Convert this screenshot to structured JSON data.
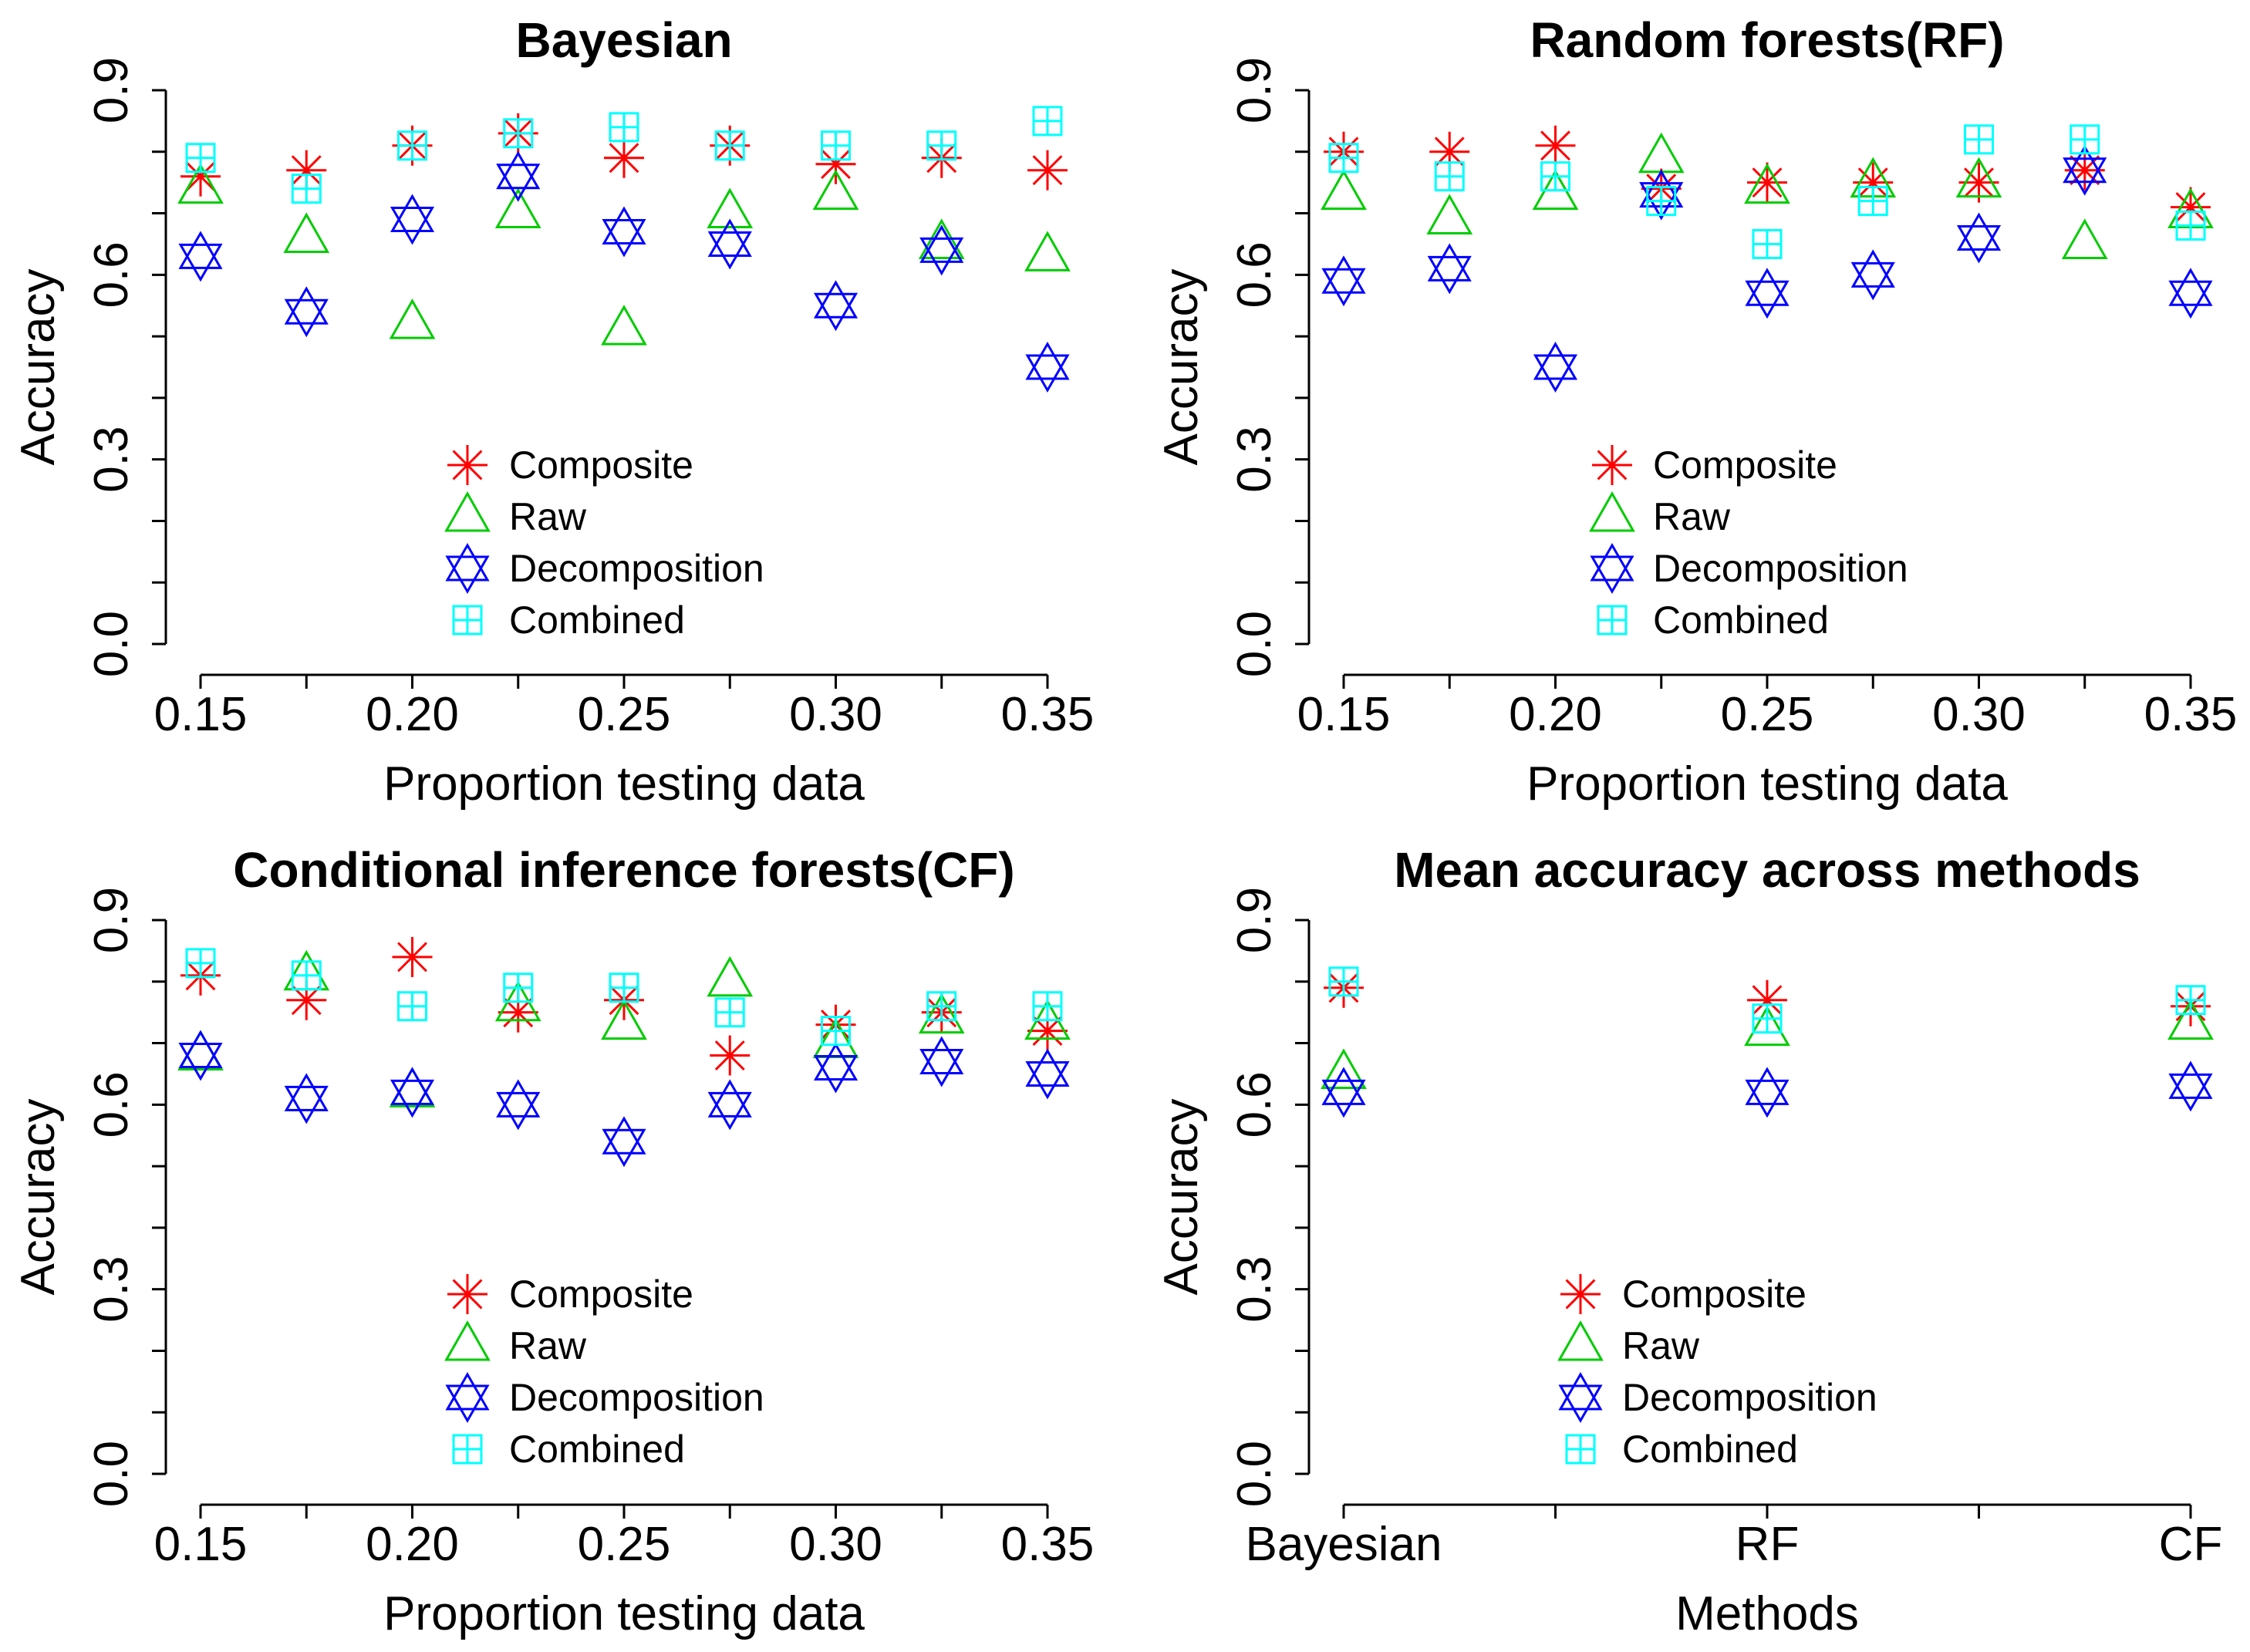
{
  "chart_data": [
    {
      "type": "scatter",
      "title": "Bayesian",
      "xlabel": "Proportion testing data",
      "ylabel": "Accuracy",
      "xlim": [
        0.15,
        0.35
      ],
      "ylim": [
        0.0,
        0.9
      ],
      "x_ticks": [
        "0.15",
        "0.20",
        "0.25",
        "0.30",
        "0.35"
      ],
      "y_ticks": [
        "0.0",
        "0.3",
        "0.6",
        "0.9"
      ],
      "x": [
        0.15,
        0.175,
        0.2,
        0.225,
        0.25,
        0.275,
        0.3,
        0.325,
        0.35
      ],
      "legend_position": "center",
      "series": [
        {
          "name": "Composite",
          "marker": "asterisk",
          "color": "#ff0000",
          "values": [
            0.76,
            0.77,
            0.81,
            0.83,
            0.79,
            0.81,
            0.78,
            0.79,
            0.77
          ]
        },
        {
          "name": "Raw",
          "marker": "triangle",
          "color": "#00cc00",
          "values": [
            0.74,
            0.66,
            0.52,
            0.7,
            0.51,
            0.7,
            0.73,
            0.65,
            0.63
          ]
        },
        {
          "name": "Decomposition",
          "marker": "star6",
          "color": "#0000ff",
          "values": [
            0.63,
            0.54,
            0.69,
            0.76,
            0.67,
            0.65,
            0.55,
            0.64,
            0.45
          ]
        },
        {
          "name": "Combined",
          "marker": "boxplus",
          "color": "#00ffff",
          "values": [
            0.79,
            0.74,
            0.81,
            0.83,
            0.84,
            0.81,
            0.81,
            0.81,
            0.85
          ]
        }
      ]
    },
    {
      "type": "scatter",
      "title": "Random forests(RF)",
      "xlabel": "Proportion testing data",
      "ylabel": "Accuracy",
      "xlim": [
        0.15,
        0.35
      ],
      "ylim": [
        0.0,
        0.9
      ],
      "x_ticks": [
        "0.15",
        "0.20",
        "0.25",
        "0.30",
        "0.35"
      ],
      "y_ticks": [
        "0.0",
        "0.3",
        "0.6",
        "0.9"
      ],
      "x": [
        0.15,
        0.175,
        0.2,
        0.225,
        0.25,
        0.275,
        0.3,
        0.325,
        0.35
      ],
      "legend_position": "center",
      "series": [
        {
          "name": "Composite",
          "marker": "asterisk",
          "color": "#ff0000",
          "values": [
            0.8,
            0.8,
            0.81,
            0.74,
            0.75,
            0.75,
            0.75,
            0.77,
            0.71
          ]
        },
        {
          "name": "Raw",
          "marker": "triangle",
          "color": "#00cc00",
          "values": [
            0.73,
            0.69,
            0.73,
            0.79,
            0.74,
            0.75,
            0.75,
            0.65,
            0.7
          ]
        },
        {
          "name": "Decomposition",
          "marker": "star6",
          "color": "#0000ff",
          "values": [
            0.59,
            0.61,
            0.45,
            0.73,
            0.57,
            0.6,
            0.66,
            0.77,
            0.57
          ]
        },
        {
          "name": "Combined",
          "marker": "boxplus",
          "color": "#00ffff",
          "values": [
            0.79,
            0.76,
            0.76,
            0.72,
            0.65,
            0.72,
            0.82,
            0.82,
            0.68
          ]
        }
      ]
    },
    {
      "type": "scatter",
      "title": "Conditional inference forests(CF)",
      "xlabel": "Proportion testing data",
      "ylabel": "Accuracy",
      "xlim": [
        0.15,
        0.35
      ],
      "ylim": [
        0.0,
        0.9
      ],
      "x_ticks": [
        "0.15",
        "0.20",
        "0.25",
        "0.30",
        "0.35"
      ],
      "y_ticks": [
        "0.0",
        "0.3",
        "0.6",
        "0.9"
      ],
      "x": [
        0.15,
        0.175,
        0.2,
        0.225,
        0.25,
        0.275,
        0.3,
        0.325,
        0.35
      ],
      "legend_position": "center",
      "series": [
        {
          "name": "Composite",
          "marker": "asterisk",
          "color": "#ff0000",
          "values": [
            0.81,
            0.77,
            0.84,
            0.75,
            0.77,
            0.68,
            0.73,
            0.75,
            0.72
          ]
        },
        {
          "name": "Raw",
          "marker": "triangle",
          "color": "#00cc00",
          "values": [
            0.68,
            0.81,
            0.62,
            0.76,
            0.73,
            0.8,
            0.7,
            0.74,
            0.73
          ]
        },
        {
          "name": "Decomposition",
          "marker": "star6",
          "color": "#0000ff",
          "values": [
            0.68,
            0.61,
            0.62,
            0.6,
            0.54,
            0.6,
            0.66,
            0.67,
            0.65
          ]
        },
        {
          "name": "Combined",
          "marker": "boxplus",
          "color": "#00ffff",
          "values": [
            0.83,
            0.81,
            0.76,
            0.79,
            0.79,
            0.75,
            0.72,
            0.76,
            0.76
          ]
        }
      ]
    },
    {
      "type": "scatter",
      "title": "Mean accuracy across methods",
      "xlabel": "Methods",
      "ylabel": "Accuracy",
      "xlim": [
        0,
        2
      ],
      "ylim": [
        0.0,
        0.9
      ],
      "categories": [
        "Bayesian",
        "RF",
        "CF"
      ],
      "y_ticks": [
        "0.0",
        "0.3",
        "0.6",
        "0.9"
      ],
      "legend_position": "center",
      "series": [
        {
          "name": "Composite",
          "marker": "asterisk",
          "color": "#ff0000",
          "values": [
            0.79,
            0.77,
            0.76
          ]
        },
        {
          "name": "Raw",
          "marker": "triangle",
          "color": "#00cc00",
          "values": [
            0.65,
            0.72,
            0.73
          ]
        },
        {
          "name": "Decomposition",
          "marker": "star6",
          "color": "#0000ff",
          "values": [
            0.62,
            0.62,
            0.63
          ]
        },
        {
          "name": "Combined",
          "marker": "boxplus",
          "color": "#00ffff",
          "values": [
            0.8,
            0.74,
            0.77
          ]
        }
      ]
    }
  ]
}
